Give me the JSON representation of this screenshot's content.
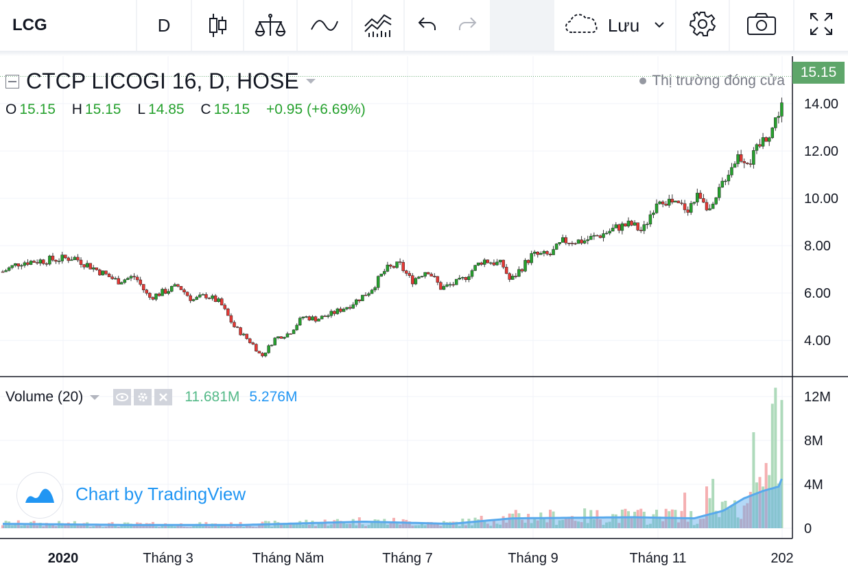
{
  "toolbar": {
    "symbol": "LCG",
    "interval": "D",
    "save_label": "Lưu"
  },
  "legend": {
    "title": "CTCP LICOGI 16, D, HOSE",
    "ohlc": [
      {
        "key": "O",
        "value": "15.15"
      },
      {
        "key": "H",
        "value": "15.15"
      },
      {
        "key": "L",
        "value": "14.85"
      },
      {
        "key": "C",
        "value": "15.15"
      }
    ],
    "change": "+0.95 (+6.69%)",
    "market_status": "Thị trường đóng cửa",
    "last_price": "15.15"
  },
  "volume_legend": {
    "label": "Volume (20)",
    "volume_value": "11.681M",
    "ma_value": "5.276M"
  },
  "brand": {
    "label": "Chart by TradingView"
  },
  "colors": {
    "up": "#26a12e",
    "down": "#e53935",
    "vol_up": "#a5d6b4",
    "vol_down": "#f4a6a8",
    "vol_ma": "#58a9ec",
    "accent": "#2196f3"
  },
  "chart_data": {
    "type": "candlestick",
    "price_axis": {
      "ticks": [
        "4.00",
        "6.00",
        "8.00",
        "10.00",
        "12.00",
        "14.00"
      ],
      "ylim": [
        2.5,
        16.0
      ]
    },
    "volume_axis": {
      "ticks": [
        "0",
        "4M",
        "8M",
        "12M"
      ],
      "ylim": [
        0,
        13.5
      ]
    },
    "time_axis": {
      "labels": [
        "2020",
        "Tháng 3",
        "Tháng Năm",
        "Tháng 7",
        "Tháng 9",
        "Tháng 11",
        "202"
      ],
      "range": [
        "2019-12-01",
        "2020-12-31"
      ]
    },
    "close_path": [
      [
        "2019-12-01",
        6.9
      ],
      [
        "2019-12-10",
        7.3
      ],
      [
        "2019-12-25",
        7.4
      ],
      [
        "2020-01-06",
        7.5
      ],
      [
        "2020-01-15",
        7.1
      ],
      [
        "2020-01-28",
        6.5
      ],
      [
        "2020-02-06",
        6.7
      ],
      [
        "2020-02-13",
        5.8
      ],
      [
        "2020-02-19",
        6.0
      ],
      [
        "2020-02-28",
        6.3
      ],
      [
        "2020-03-06",
        5.7
      ],
      [
        "2020-03-13",
        5.9
      ],
      [
        "2020-03-20",
        5.6
      ],
      [
        "2020-03-27",
        4.6
      ],
      [
        "2020-04-06",
        3.8
      ],
      [
        "2020-04-10",
        3.3
      ],
      [
        "2020-04-17",
        4.1
      ],
      [
        "2020-04-24",
        4.3
      ],
      [
        "2020-05-01",
        5.0
      ],
      [
        "2020-05-08",
        4.9
      ],
      [
        "2020-05-15",
        5.1
      ],
      [
        "2020-05-25",
        5.5
      ],
      [
        "2020-06-04",
        6.1
      ],
      [
        "2020-06-12",
        7.0
      ],
      [
        "2020-06-19",
        7.2
      ],
      [
        "2020-06-25",
        6.5
      ],
      [
        "2020-07-03",
        7.0
      ],
      [
        "2020-07-10",
        6.2
      ],
      [
        "2020-07-20",
        6.5
      ],
      [
        "2020-07-31",
        7.4
      ],
      [
        "2020-08-10",
        7.2
      ],
      [
        "2020-08-14",
        6.5
      ],
      [
        "2020-08-25",
        7.6
      ],
      [
        "2020-09-03",
        7.6
      ],
      [
        "2020-09-10",
        8.2
      ],
      [
        "2020-09-20",
        8.2
      ],
      [
        "2020-09-30",
        8.5
      ],
      [
        "2020-10-08",
        8.8
      ],
      [
        "2020-10-14",
        8.9
      ],
      [
        "2020-10-20",
        8.6
      ],
      [
        "2020-10-28",
        10.1
      ],
      [
        "2020-11-06",
        9.7
      ],
      [
        "2020-11-12",
        9.6
      ],
      [
        "2020-11-18",
        10.2
      ],
      [
        "2020-11-24",
        9.4
      ],
      [
        "2020-11-30",
        10.8
      ],
      [
        "2020-12-07",
        11.8
      ],
      [
        "2020-12-14",
        11.6
      ],
      [
        "2020-12-21",
        12.6
      ],
      [
        "2020-12-25",
        13.0
      ],
      [
        "2020-12-30",
        14.2
      ],
      [
        "2020-12-31",
        15.15
      ]
    ],
    "volume_bars": {
      "approx_count": 250,
      "max_recent": 12.8
    },
    "volume_ma_path": [
      [
        "2019-12-01",
        0.4
      ],
      [
        "2020-02-01",
        0.3
      ],
      [
        "2020-04-01",
        0.3
      ],
      [
        "2020-06-01",
        0.6
      ],
      [
        "2020-07-15",
        0.4
      ],
      [
        "2020-08-15",
        0.9
      ],
      [
        "2020-10-15",
        1.0
      ],
      [
        "2020-11-15",
        0.9
      ],
      [
        "2020-11-30",
        1.6
      ],
      [
        "2020-12-10",
        2.7
      ],
      [
        "2020-12-20",
        3.4
      ],
      [
        "2020-12-28",
        3.8
      ],
      [
        "2020-12-31",
        5.276
      ]
    ]
  }
}
